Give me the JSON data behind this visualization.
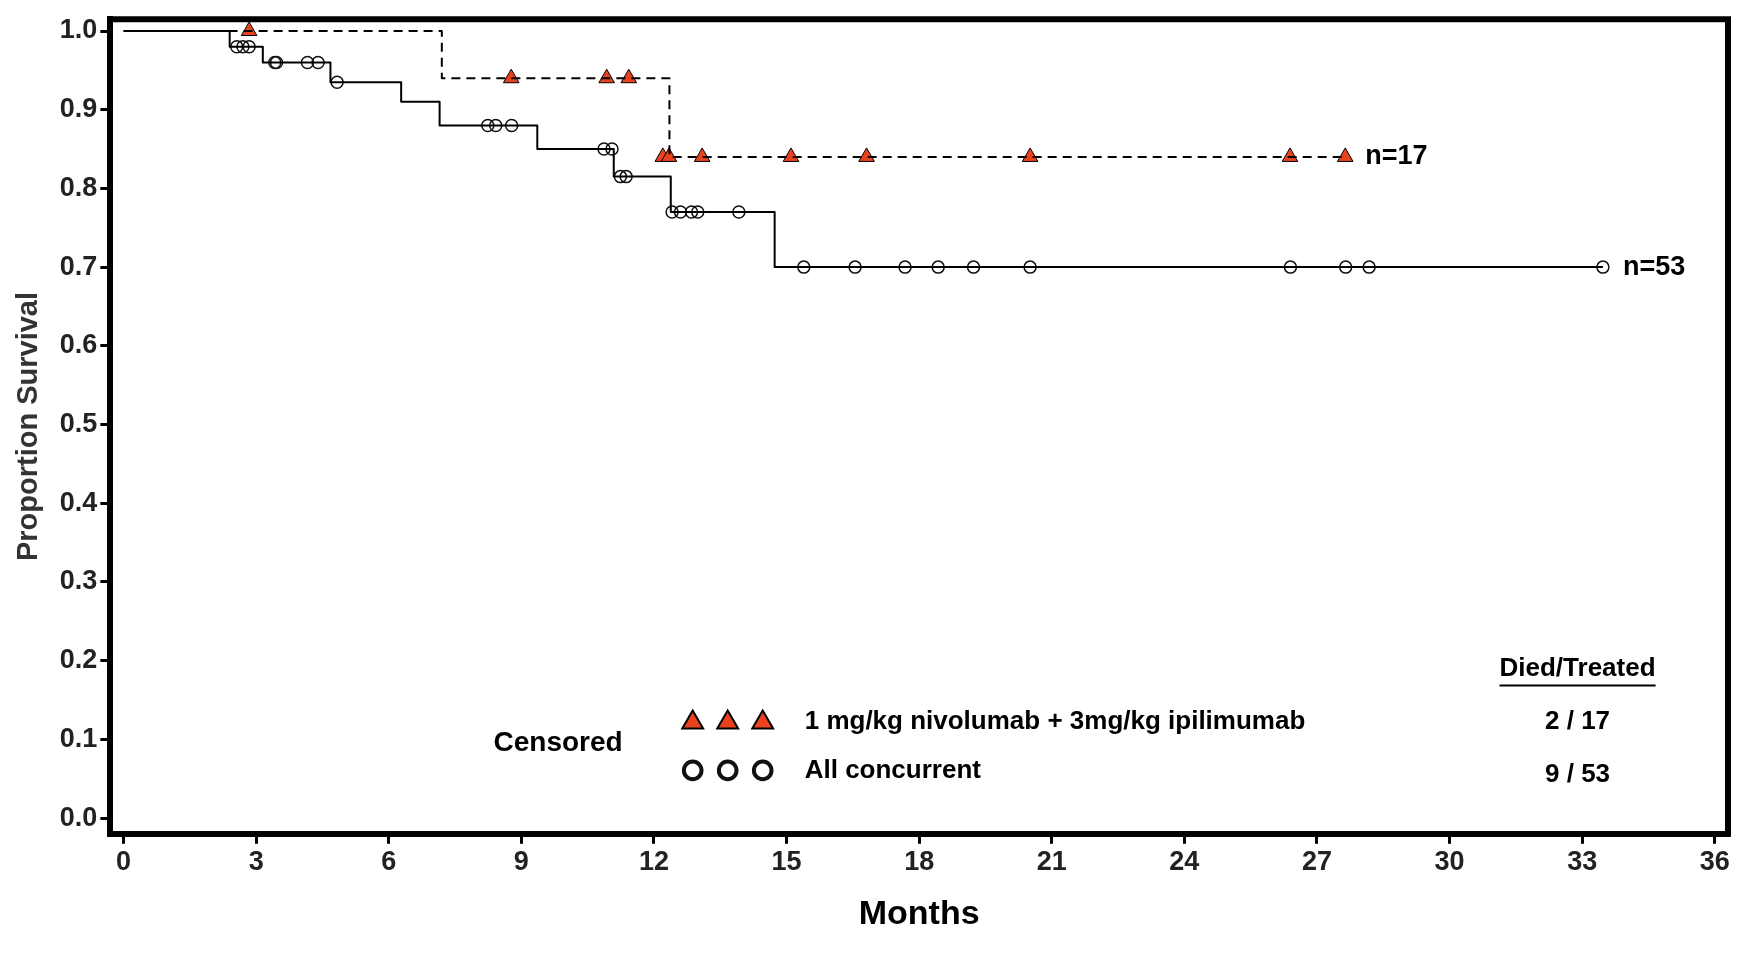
{
  "chart_data": {
    "type": "step",
    "xlabel": "Months",
    "ylabel": "Proportion Survival",
    "xlim": [
      -0.3,
      36.3
    ],
    "ylim": [
      -0.02,
      1.015
    ],
    "xticks": [
      0,
      3,
      6,
      9,
      12,
      15,
      18,
      21,
      24,
      27,
      30,
      33,
      36
    ],
    "yticks": [
      {
        "value": 0,
        "label": "0.0"
      },
      0.1,
      0.2,
      0.3,
      0.4,
      0.5,
      0.6,
      0.7,
      0.8,
      0.9,
      {
        "value": 1,
        "label": "1.0"
      }
    ],
    "grid": false,
    "legend": "bottom right",
    "series": [
      {
        "color": "#000000",
        "line_style": "dashed",
        "marker": "none",
        "x": [
          0,
          7.2,
          12.35,
          27.64
        ],
        "values": [
          1,
          0.94,
          0.84,
          0.84
        ]
      },
      {
        "color": "#000000",
        "line_style": "solid",
        "marker": "none",
        "x": [
          0,
          2.4,
          3.15,
          4.68,
          6.28,
          7.15,
          9.36,
          11.09,
          12.38,
          14.73,
          33.47
        ],
        "values": [
          1,
          0.98,
          0.96,
          0.935,
          0.91,
          0.88,
          0.85,
          0.815,
          0.77,
          0.7,
          0.7
        ]
      },
      {
        "type": "scatter",
        "name": "1 mg/kg nivolumab + 3mg/kg ipilimumab",
        "color": "#e8431e",
        "marker": "triangle",
        "x": [
          2.84,
          8.77,
          10.93,
          11.43,
          12.2,
          12.34,
          13.09,
          15.1,
          16.81,
          20.51,
          26.39,
          27.64
        ],
        "values": [
          1,
          0.94,
          0.94,
          0.94,
          0.84,
          0.84,
          0.84,
          0.84,
          0.84,
          0.84,
          0.84,
          0.84
        ]
      },
      {
        "type": "scatter",
        "name": "All concurrent",
        "color": "#111111",
        "marker": "circle",
        "x": [
          2.56,
          2.7,
          2.84,
          3.42,
          3.46,
          4.16,
          4.4,
          4.83,
          8.24,
          8.42,
          8.78,
          10.87,
          11.05,
          11.24,
          11.37,
          12.41,
          12.6,
          12.85,
          12.99,
          13.92,
          15.39,
          16.55,
          17.68,
          18.43,
          19.23,
          20.51,
          26.4,
          27.65,
          28.18,
          33.47
        ],
        "values": [
          0.98,
          0.98,
          0.98,
          0.96,
          0.96,
          0.96,
          0.96,
          0.935,
          0.88,
          0.88,
          0.88,
          0.85,
          0.85,
          0.815,
          0.815,
          0.77,
          0.77,
          0.77,
          0.77,
          0.77,
          0.7,
          0.7,
          0.7,
          0.7,
          0.7,
          0.7,
          0.7,
          0.7,
          0.7,
          0.7
        ]
      }
    ],
    "annotations": [
      {
        "text": "n=17",
        "x": 27.64,
        "y": 0.84
      },
      {
        "text": "n=53",
        "x": 33.47,
        "y": 0.7
      },
      "Censored",
      "Died/Treated",
      "2 / 17",
      "9 / 53"
    ]
  }
}
